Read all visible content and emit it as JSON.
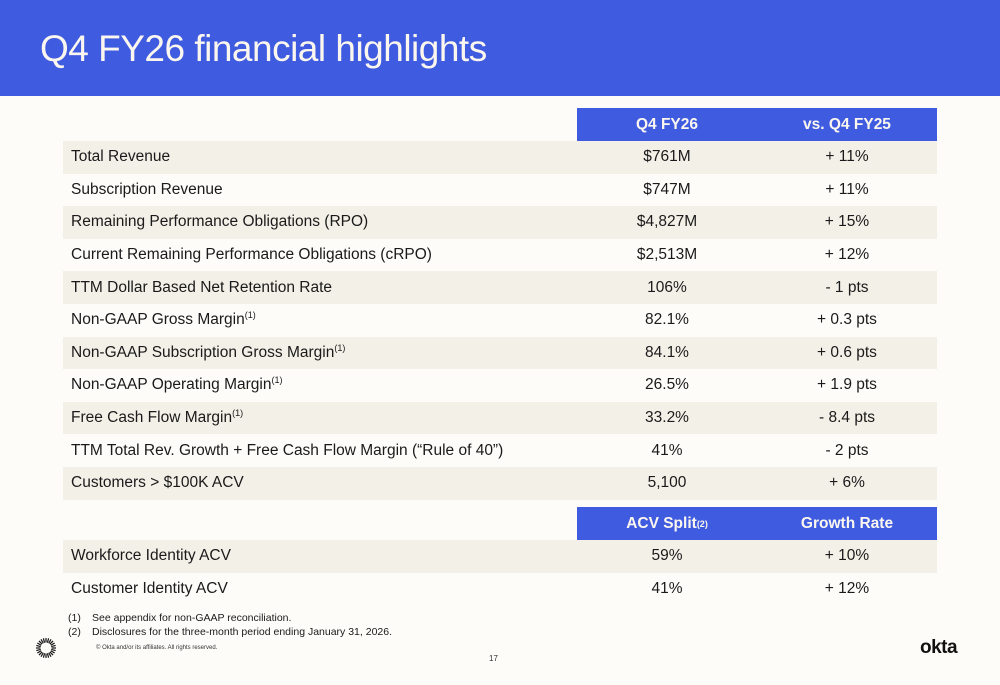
{
  "title": "Q4 FY26 financial highlights",
  "main_table": {
    "headers": [
      "Q4 FY26",
      "vs. Q4 FY25"
    ],
    "rows": [
      {
        "label": "Total Revenue",
        "sup": "",
        "value": "$761M",
        "change": "+ 11%"
      },
      {
        "label": "Subscription Revenue",
        "sup": "",
        "value": "$747M",
        "change": "+ 11%"
      },
      {
        "label": "Remaining Performance Obligations (RPO)",
        "sup": "",
        "value": "$4,827M",
        "change": "+ 15%"
      },
      {
        "label": "Current Remaining Performance Obligations (cRPO)",
        "sup": "",
        "value": "$2,513M",
        "change": "+ 12%"
      },
      {
        "label": "TTM Dollar Based Net Retention Rate",
        "sup": "",
        "value": "106%",
        "change": "- 1 pts"
      },
      {
        "label": "Non-GAAP Gross Margin",
        "sup": "(1)",
        "value": "82.1%",
        "change": "+ 0.3 pts"
      },
      {
        "label": "Non-GAAP Subscription Gross Margin",
        "sup": "(1)",
        "value": "84.1%",
        "change": "+ 0.6 pts"
      },
      {
        "label": "Non-GAAP Operating Margin",
        "sup": "(1)",
        "value": "26.5%",
        "change": "+ 1.9 pts"
      },
      {
        "label": "Free Cash Flow Margin",
        "sup": "(1)",
        "value": "33.2%",
        "change": "- 8.4 pts"
      },
      {
        "label": "TTM Total Rev. Growth + Free Cash Flow Margin (“Rule of 40”)",
        "sup": "",
        "value": "41%",
        "change": "- 2 pts"
      },
      {
        "label": "Customers > $100K ACV",
        "sup": "",
        "value": "5,100",
        "change": "+ 6%"
      }
    ]
  },
  "acv_table": {
    "headers": [
      "ACV Split",
      "Growth Rate"
    ],
    "header_sup": "(2)",
    "rows": [
      {
        "label": "Workforce Identity ACV",
        "value": "59%",
        "change": "+ 10%"
      },
      {
        "label": "Customer Identity ACV",
        "value": "41%",
        "change": "+ 12%"
      }
    ]
  },
  "footnotes": [
    {
      "num": "(1)",
      "text": "See appendix for non-GAAP reconciliation."
    },
    {
      "num": "(2)",
      "text": "Disclosures for the three-month period ending January 31, 2026."
    }
  ],
  "copyright": "© Okta and/or its affiliates. All rights reserved.",
  "page_number": "17",
  "logo_text": "okta",
  "colors": {
    "brand_blue": "#3f5be0",
    "row_shade": "#f3f0e8",
    "background": "#fdfcf9"
  }
}
